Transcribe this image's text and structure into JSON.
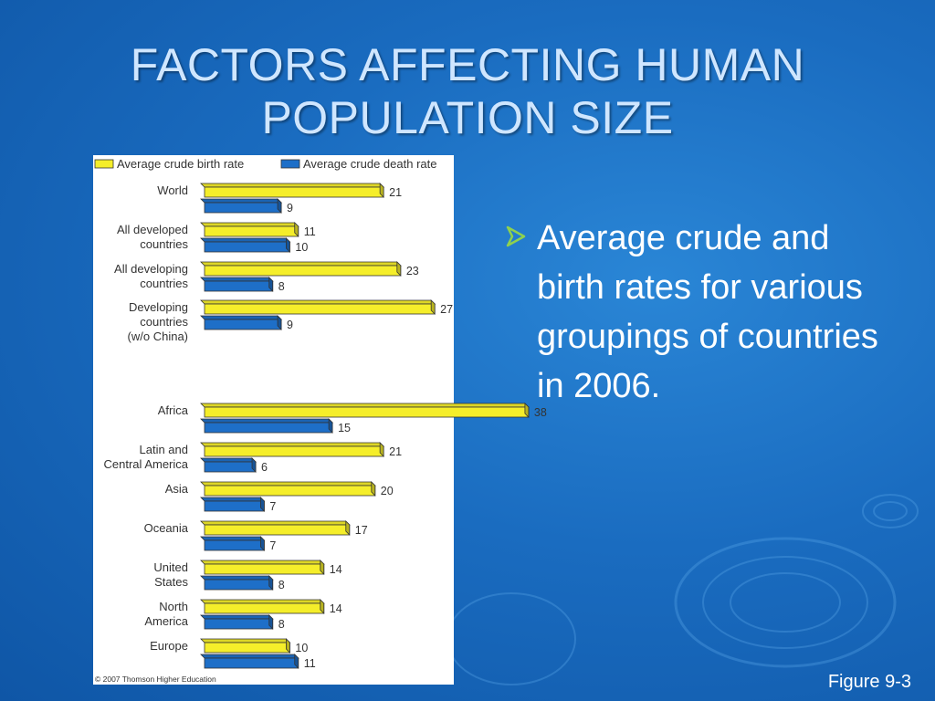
{
  "slide": {
    "title_line1": "FACTORS AFFECTING HUMAN",
    "title_line2": "POPULATION SIZE",
    "bullet": "Average crude and birth rates for various groupings of countries in 2006.",
    "figure_label": "Figure 9-3",
    "copyright": "© 2007 Thomson Higher Education",
    "colors": {
      "background": "#1a6cc0",
      "title": "#cfe6ff",
      "bullet_arrow": "#8fd14f"
    }
  },
  "chart_data": {
    "type": "bar",
    "orientation": "horizontal",
    "title": "",
    "xlabel": "",
    "ylabel": "",
    "xlim": [
      0,
      38
    ],
    "grid": false,
    "legend_position": "top",
    "categories": [
      [
        "World"
      ],
      [
        "All developed",
        "countries"
      ],
      [
        "All developing",
        "countries"
      ],
      [
        "Developing",
        "countries",
        "(w/o China)"
      ],
      [
        "Africa"
      ],
      [
        "Latin and",
        "Central America"
      ],
      [
        "Asia"
      ],
      [
        "Oceania"
      ],
      [
        "United",
        "States"
      ],
      [
        "North",
        "America"
      ],
      [
        "Europe"
      ]
    ],
    "series": [
      {
        "name": "Average crude birth rate",
        "color": "#f5ee2a",
        "values": [
          21,
          11,
          23,
          27,
          38,
          21,
          20,
          17,
          14,
          14,
          10
        ]
      },
      {
        "name": "Average crude death rate",
        "color": "#1e6fc8",
        "values": [
          9,
          10,
          8,
          9,
          15,
          6,
          7,
          7,
          8,
          8,
          11
        ]
      }
    ]
  }
}
